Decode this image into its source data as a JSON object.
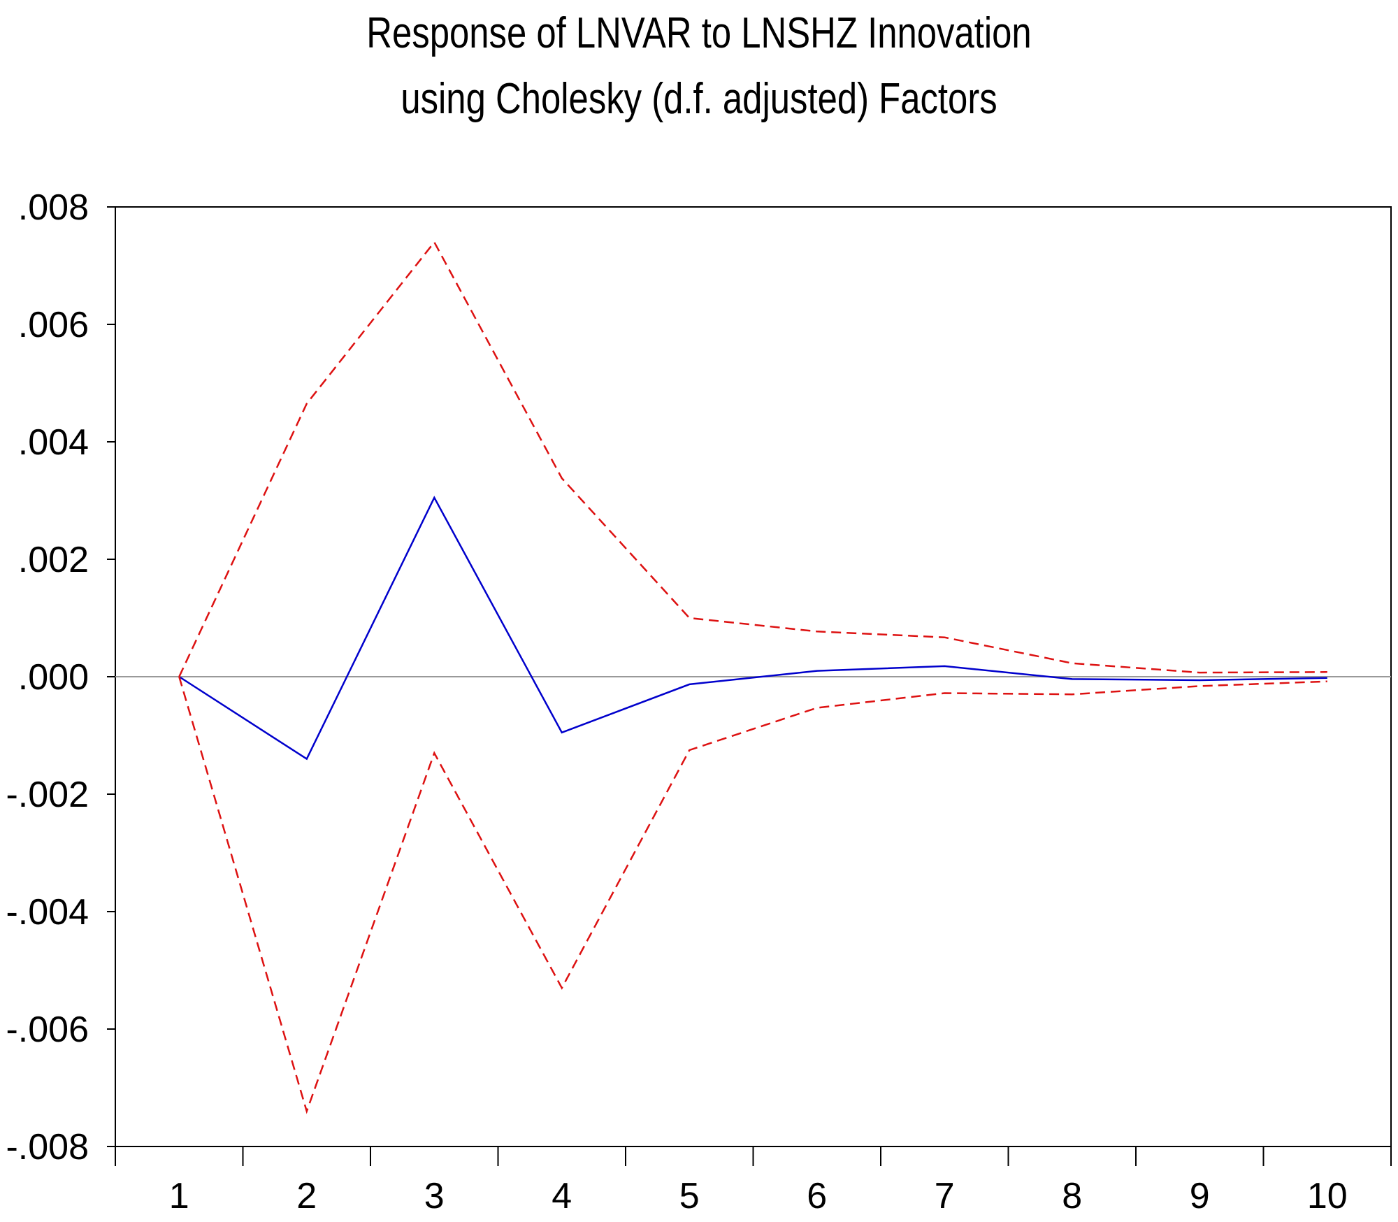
{
  "chart_data": {
    "type": "line",
    "title": "Response of LNVAR to LNSHZ Innovation",
    "subtitle": "using Cholesky (d.f. adjusted) Factors",
    "xlabel": "",
    "ylabel": "",
    "categories": [
      "1",
      "2",
      "3",
      "4",
      "5",
      "6",
      "7",
      "8",
      "9",
      "10"
    ],
    "x": [
      1,
      2,
      3,
      4,
      5,
      6,
      7,
      8,
      9,
      10
    ],
    "ylim": [
      -0.008,
      0.008
    ],
    "yticks": [
      0.008,
      0.006,
      0.004,
      0.002,
      0.0,
      -0.002,
      -0.004,
      -0.006,
      -0.008
    ],
    "ytick_labels": [
      ".008",
      ".006",
      ".004",
      ".002",
      ".000",
      "-.002",
      "-.004",
      "-.006",
      "-.008"
    ],
    "grid": false,
    "zero_line": true,
    "series": [
      {
        "role": "response",
        "style": "solid",
        "color": "#0000cc",
        "values": [
          0.0,
          -0.0014,
          0.00305,
          -0.00095,
          -0.00013,
          0.0001,
          0.00018,
          -4e-05,
          -6e-05,
          -2e-05
        ]
      },
      {
        "role": "upper-band",
        "style": "dashed",
        "color": "#dd1111",
        "values": [
          0.0,
          0.00465,
          0.0074,
          0.00338,
          0.001,
          0.00077,
          0.00067,
          0.00023,
          7e-05,
          8e-05
        ]
      },
      {
        "role": "lower-band",
        "style": "dashed",
        "color": "#dd1111",
        "values": [
          0.0,
          -0.0074,
          -0.0013,
          -0.0053,
          -0.00125,
          -0.00053,
          -0.00028,
          -0.0003,
          -0.00016,
          -8e-05
        ]
      }
    ]
  }
}
